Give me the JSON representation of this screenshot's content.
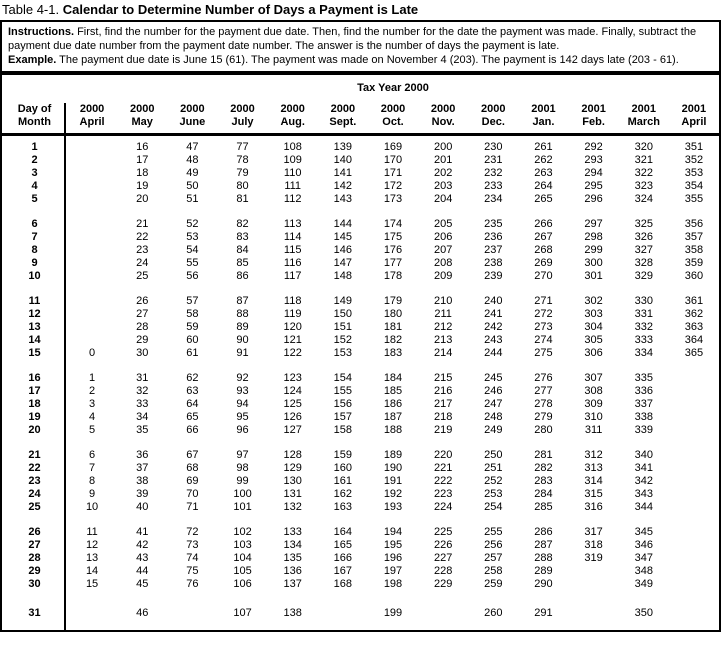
{
  "colors": {
    "background": "#ffffff",
    "text": "#000000",
    "border": "#000000"
  },
  "title": {
    "prefix": "Table 4-1.",
    "text": "Calendar to Determine Number of Days a Payment is Late"
  },
  "instructions": {
    "label": "Instructions.",
    "text": "First, find the number for the payment due date. Then, find the number for the date the payment was made. Finally, subtract the payment due date number from the payment date number. The answer is the number of days the payment is late.",
    "example_label": "Example.",
    "example_text": "The payment due date is June 15 (61). The payment was made on November 4 (203). The payment is 142 days late (203 - 61)."
  },
  "table": {
    "span_header": "Tax Year 2000",
    "day_header_line1": "Day of",
    "day_header_line2": "Month",
    "columns": [
      {
        "year": "2000",
        "month": "April"
      },
      {
        "year": "2000",
        "month": "May"
      },
      {
        "year": "2000",
        "month": "June"
      },
      {
        "year": "2000",
        "month": "July"
      },
      {
        "year": "2000",
        "month": "Aug."
      },
      {
        "year": "2000",
        "month": "Sept."
      },
      {
        "year": "2000",
        "month": "Oct."
      },
      {
        "year": "2000",
        "month": "Nov."
      },
      {
        "year": "2000",
        "month": "Dec."
      },
      {
        "year": "2001",
        "month": "Jan."
      },
      {
        "year": "2001",
        "month": "Feb."
      },
      {
        "year": "2001",
        "month": "March"
      },
      {
        "year": "2001",
        "month": "April"
      }
    ],
    "groups": [
      [
        {
          "day": "1",
          "values": [
            "",
            "16",
            "47",
            "77",
            "108",
            "139",
            "169",
            "200",
            "230",
            "261",
            "292",
            "320",
            "351"
          ]
        },
        {
          "day": "2",
          "values": [
            "",
            "17",
            "48",
            "78",
            "109",
            "140",
            "170",
            "201",
            "231",
            "262",
            "293",
            "321",
            "352"
          ]
        },
        {
          "day": "3",
          "values": [
            "",
            "18",
            "49",
            "79",
            "110",
            "141",
            "171",
            "202",
            "232",
            "263",
            "294",
            "322",
            "353"
          ]
        },
        {
          "day": "4",
          "values": [
            "",
            "19",
            "50",
            "80",
            "111",
            "142",
            "172",
            "203",
            "233",
            "264",
            "295",
            "323",
            "354"
          ]
        },
        {
          "day": "5",
          "values": [
            "",
            "20",
            "51",
            "81",
            "112",
            "143",
            "173",
            "204",
            "234",
            "265",
            "296",
            "324",
            "355"
          ]
        }
      ],
      [
        {
          "day": "6",
          "values": [
            "",
            "21",
            "52",
            "82",
            "113",
            "144",
            "174",
            "205",
            "235",
            "266",
            "297",
            "325",
            "356"
          ]
        },
        {
          "day": "7",
          "values": [
            "",
            "22",
            "53",
            "83",
            "114",
            "145",
            "175",
            "206",
            "236",
            "267",
            "298",
            "326",
            "357"
          ]
        },
        {
          "day": "8",
          "values": [
            "",
            "23",
            "54",
            "84",
            "115",
            "146",
            "176",
            "207",
            "237",
            "268",
            "299",
            "327",
            "358"
          ]
        },
        {
          "day": "9",
          "values": [
            "",
            "24",
            "55",
            "85",
            "116",
            "147",
            "177",
            "208",
            "238",
            "269",
            "300",
            "328",
            "359"
          ]
        },
        {
          "day": "10",
          "values": [
            "",
            "25",
            "56",
            "86",
            "117",
            "148",
            "178",
            "209",
            "239",
            "270",
            "301",
            "329",
            "360"
          ]
        }
      ],
      [
        {
          "day": "11",
          "values": [
            "",
            "26",
            "57",
            "87",
            "118",
            "149",
            "179",
            "210",
            "240",
            "271",
            "302",
            "330",
            "361"
          ]
        },
        {
          "day": "12",
          "values": [
            "",
            "27",
            "58",
            "88",
            "119",
            "150",
            "180",
            "211",
            "241",
            "272",
            "303",
            "331",
            "362"
          ]
        },
        {
          "day": "13",
          "values": [
            "",
            "28",
            "59",
            "89",
            "120",
            "151",
            "181",
            "212",
            "242",
            "273",
            "304",
            "332",
            "363"
          ]
        },
        {
          "day": "14",
          "values": [
            "",
            "29",
            "60",
            "90",
            "121",
            "152",
            "182",
            "213",
            "243",
            "274",
            "305",
            "333",
            "364"
          ]
        },
        {
          "day": "15",
          "values": [
            "0",
            "30",
            "61",
            "91",
            "122",
            "153",
            "183",
            "214",
            "244",
            "275",
            "306",
            "334",
            "365"
          ]
        }
      ],
      [
        {
          "day": "16",
          "values": [
            "1",
            "31",
            "62",
            "92",
            "123",
            "154",
            "184",
            "215",
            "245",
            "276",
            "307",
            "335",
            ""
          ]
        },
        {
          "day": "17",
          "values": [
            "2",
            "32",
            "63",
            "93",
            "124",
            "155",
            "185",
            "216",
            "246",
            "277",
            "308",
            "336",
            ""
          ]
        },
        {
          "day": "18",
          "values": [
            "3",
            "33",
            "64",
            "94",
            "125",
            "156",
            "186",
            "217",
            "247",
            "278",
            "309",
            "337",
            ""
          ]
        },
        {
          "day": "19",
          "values": [
            "4",
            "34",
            "65",
            "95",
            "126",
            "157",
            "187",
            "218",
            "248",
            "279",
            "310",
            "338",
            ""
          ]
        },
        {
          "day": "20",
          "values": [
            "5",
            "35",
            "66",
            "96",
            "127",
            "158",
            "188",
            "219",
            "249",
            "280",
            "311",
            "339",
            ""
          ]
        }
      ],
      [
        {
          "day": "21",
          "values": [
            "6",
            "36",
            "67",
            "97",
            "128",
            "159",
            "189",
            "220",
            "250",
            "281",
            "312",
            "340",
            ""
          ]
        },
        {
          "day": "22",
          "values": [
            "7",
            "37",
            "68",
            "98",
            "129",
            "160",
            "190",
            "221",
            "251",
            "282",
            "313",
            "341",
            ""
          ]
        },
        {
          "day": "23",
          "values": [
            "8",
            "38",
            "69",
            "99",
            "130",
            "161",
            "191",
            "222",
            "252",
            "283",
            "314",
            "342",
            ""
          ]
        },
        {
          "day": "24",
          "values": [
            "9",
            "39",
            "70",
            "100",
            "131",
            "162",
            "192",
            "223",
            "253",
            "284",
            "315",
            "343",
            ""
          ]
        },
        {
          "day": "25",
          "values": [
            "10",
            "40",
            "71",
            "101",
            "132",
            "163",
            "193",
            "224",
            "254",
            "285",
            "316",
            "344",
            ""
          ]
        }
      ],
      [
        {
          "day": "26",
          "values": [
            "11",
            "41",
            "72",
            "102",
            "133",
            "164",
            "194",
            "225",
            "255",
            "286",
            "317",
            "345",
            ""
          ]
        },
        {
          "day": "27",
          "values": [
            "12",
            "42",
            "73",
            "103",
            "134",
            "165",
            "195",
            "226",
            "256",
            "287",
            "318",
            "346",
            ""
          ]
        },
        {
          "day": "28",
          "values": [
            "13",
            "43",
            "74",
            "104",
            "135",
            "166",
            "196",
            "227",
            "257",
            "288",
            "319",
            "347",
            ""
          ]
        },
        {
          "day": "29",
          "values": [
            "14",
            "44",
            "75",
            "105",
            "136",
            "167",
            "197",
            "228",
            "258",
            "289",
            "",
            "348",
            ""
          ]
        },
        {
          "day": "30",
          "values": [
            "15",
            "45",
            "76",
            "106",
            "137",
            "168",
            "198",
            "229",
            "259",
            "290",
            "",
            "349",
            ""
          ]
        }
      ],
      [
        {
          "day": "31",
          "values": [
            "",
            "46",
            "",
            "107",
            "138",
            "",
            "199",
            "",
            "260",
            "291",
            "",
            "350",
            ""
          ]
        }
      ]
    ]
  }
}
